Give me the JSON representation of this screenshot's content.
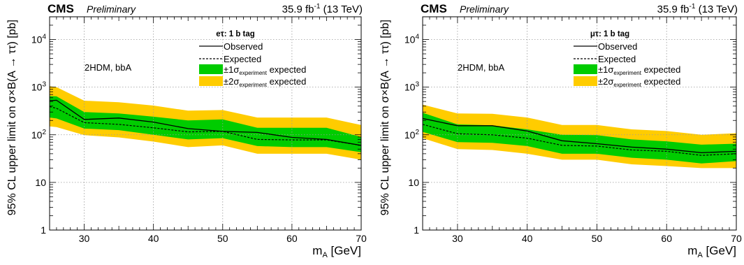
{
  "chart_data": [
    {
      "type": "line",
      "header": {
        "experiment": "CMS",
        "status": "Preliminary",
        "lumi": "35.9 fb",
        "lumi_sup": "-1",
        "energy": "(13 TeV)"
      },
      "channel": "eτ: 1 b tag",
      "model_label": "2HDM, bbA",
      "xlabel": "m",
      "xlabel_sub": "A",
      "xlabel_unit": "[GeV]",
      "ylabel": "95% CL upper limit on σ×B(A → ττ) [pb]",
      "xlim": [
        25,
        70
      ],
      "ylim": [
        1,
        30000
      ],
      "yscale": "log",
      "grid": true,
      "legend_position": "top-right",
      "x_ticks": [
        "30",
        "40",
        "50",
        "60",
        "70"
      ],
      "y_ticks": [
        "1",
        "10",
        "10",
        "10",
        "10"
      ],
      "y_tick_exponents": [
        "",
        "",
        "2",
        "3",
        "4"
      ],
      "x": [
        25,
        26,
        30,
        35,
        40,
        45,
        50,
        55,
        60,
        65,
        70
      ],
      "series": [
        {
          "name": "Observed",
          "values": [
            520,
            530,
            210,
            225,
            185,
            135,
            118,
            112,
            88,
            80,
            60
          ]
        },
        {
          "name": "Expected",
          "values": [
            390,
            360,
            180,
            165,
            140,
            115,
            118,
            80,
            78,
            78,
            60
          ]
        },
        {
          "name": "±1σ expected",
          "lower": [
            230,
            220,
            135,
            125,
            100,
            80,
            85,
            58,
            55,
            55,
            43
          ],
          "upper": [
            650,
            640,
            300,
            280,
            240,
            200,
            210,
            140,
            140,
            140,
            90
          ]
        },
        {
          "name": "±2σ expected",
          "lower": [
            150,
            145,
            98,
            88,
            72,
            55,
            60,
            40,
            40,
            40,
            30
          ],
          "upper": [
            1050,
            1000,
            520,
            480,
            410,
            320,
            330,
            230,
            230,
            230,
            160
          ]
        }
      ],
      "legend": [
        {
          "label": "Observed"
        },
        {
          "label": "Expected"
        },
        {
          "pre": "±1σ",
          "sub": "experiment",
          "post": " expected"
        },
        {
          "pre": "±2σ",
          "sub": "experiment",
          "post": " expected"
        }
      ],
      "colors": {
        "band1": "#00cc00",
        "band2": "#ffcc00",
        "line": "#000000",
        "grid": "#9a9a9a"
      }
    },
    {
      "type": "line",
      "header": {
        "experiment": "CMS",
        "status": "Preliminary",
        "lumi": "35.9 fb",
        "lumi_sup": "-1",
        "energy": "(13 TeV)"
      },
      "channel": "μτ: 1 b tag",
      "model_label": "2HDM, bbA",
      "xlabel": "m",
      "xlabel_sub": "A",
      "xlabel_unit": "[GeV]",
      "ylabel": "95% CL upper limit on σ×B(A → ττ) [pb]",
      "xlim": [
        25,
        70
      ],
      "ylim": [
        1,
        30000
      ],
      "yscale": "log",
      "grid": true,
      "legend_position": "top-right",
      "x_ticks": [
        "30",
        "40",
        "50",
        "60",
        "70"
      ],
      "y_ticks": [
        "1",
        "10",
        "10",
        "10",
        "10"
      ],
      "y_tick_exponents": [
        "",
        "",
        "2",
        "3",
        "4"
      ],
      "x": [
        25,
        30,
        35,
        40,
        45,
        50,
        55,
        60,
        65,
        70
      ],
      "series": [
        {
          "name": "Observed",
          "values": [
            220,
            155,
            155,
            120,
            75,
            65,
            55,
            50,
            42,
            45
          ]
        },
        {
          "name": "Expected",
          "values": [
            165,
            105,
            100,
            85,
            60,
            58,
            48,
            45,
            37,
            40
          ]
        },
        {
          "name": "±1σ expected",
          "lower": [
            115,
            70,
            68,
            58,
            40,
            40,
            33,
            30,
            25,
            28
          ],
          "upper": [
            290,
            165,
            158,
            130,
            100,
            98,
            80,
            73,
            62,
            65
          ]
        },
        {
          "name": "±2σ expected",
          "lower": [
            85,
            50,
            48,
            40,
            30,
            30,
            24,
            22,
            20,
            20
          ],
          "upper": [
            430,
            280,
            275,
            230,
            160,
            160,
            130,
            120,
            100,
            108
          ]
        }
      ],
      "legend": [
        {
          "label": "Observed"
        },
        {
          "label": "Expected"
        },
        {
          "pre": "±1σ",
          "sub": "experiment",
          "post": " expected"
        },
        {
          "pre": "±2σ",
          "sub": "experiment",
          "post": " expected"
        }
      ],
      "colors": {
        "band1": "#00cc00",
        "band2": "#ffcc00",
        "line": "#000000",
        "grid": "#9a9a9a"
      }
    }
  ]
}
